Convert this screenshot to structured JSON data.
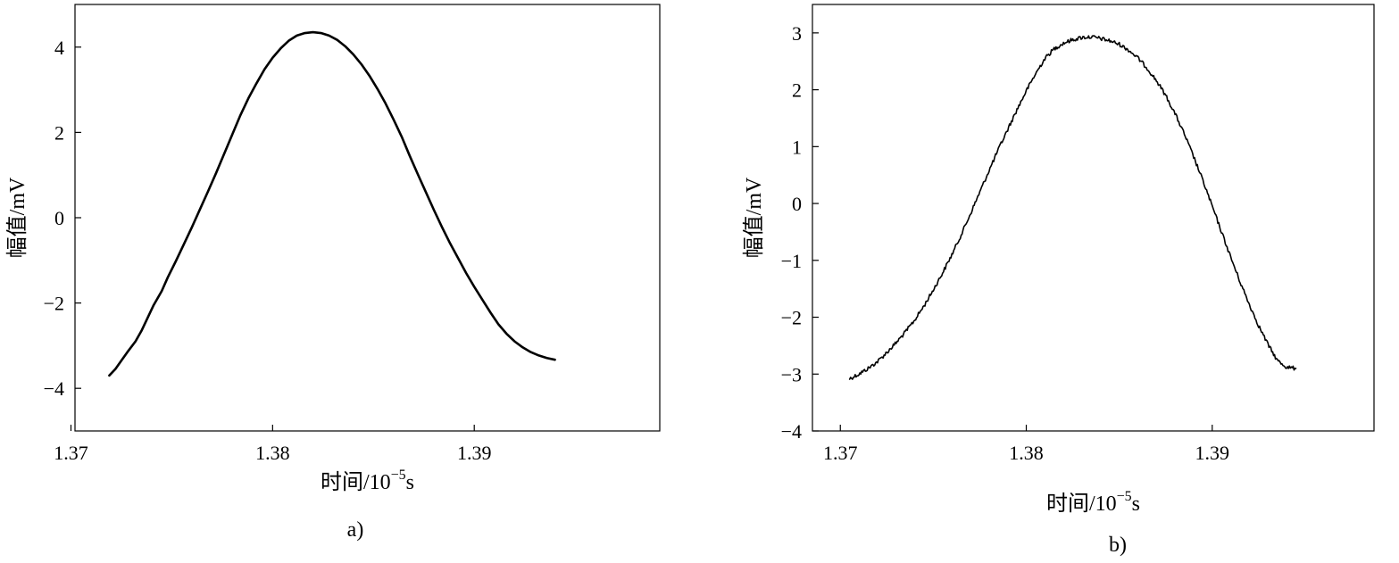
{
  "chart_data": [
    {
      "type": "line",
      "panel_label": "a)",
      "title": "",
      "xlabel": "时间/10",
      "xlabel_exponent": "−5",
      "xlabel_unit": "s",
      "ylabel": "幅值/mV",
      "xlim": [
        1.3702,
        1.3992
      ],
      "ylim": [
        -5,
        5
      ],
      "xticks": [
        1.37,
        1.38,
        1.39
      ],
      "xtick_labels": [
        "1.37",
        "1.38",
        "1.39"
      ],
      "yticks": [
        -4,
        -2,
        0,
        2,
        4
      ],
      "ytick_labels": [
        "−4",
        "−2",
        "0",
        "2",
        "4"
      ],
      "grid": false,
      "legend": "none",
      "series": [
        {
          "noise": false,
          "x": [
            1.3719,
            1.3722,
            1.3725,
            1.3728,
            1.3732,
            1.3735,
            1.3738,
            1.3741,
            1.3745,
            1.3748,
            1.3752,
            1.3756,
            1.376,
            1.3764,
            1.3768,
            1.3772,
            1.3776,
            1.378,
            1.3784,
            1.3788,
            1.3792,
            1.3796,
            1.38,
            1.3804,
            1.3808,
            1.3812,
            1.3816,
            1.382,
            1.3824,
            1.3828,
            1.3832,
            1.3836,
            1.384,
            1.3844,
            1.3848,
            1.3852,
            1.3856,
            1.386,
            1.3864,
            1.3868,
            1.3872,
            1.3876,
            1.388,
            1.3884,
            1.3888,
            1.3892,
            1.3896,
            1.39,
            1.3904,
            1.3908,
            1.3912,
            1.3916,
            1.392,
            1.3924,
            1.3928,
            1.3932,
            1.3936,
            1.394
          ],
          "y": [
            -3.7,
            -3.55,
            -3.35,
            -3.15,
            -2.9,
            -2.65,
            -2.35,
            -2.05,
            -1.72,
            -1.4,
            -1.02,
            -0.62,
            -0.22,
            0.2,
            0.62,
            1.05,
            1.5,
            1.95,
            2.4,
            2.8,
            3.15,
            3.48,
            3.75,
            3.97,
            4.15,
            4.27,
            4.33,
            4.35,
            4.33,
            4.27,
            4.17,
            4.02,
            3.83,
            3.6,
            3.33,
            3.02,
            2.68,
            2.3,
            1.9,
            1.45,
            1.02,
            0.6,
            0.18,
            -0.22,
            -0.6,
            -0.95,
            -1.3,
            -1.62,
            -1.92,
            -2.22,
            -2.5,
            -2.72,
            -2.9,
            -3.04,
            -3.15,
            -3.23,
            -3.29,
            -3.33
          ]
        }
      ]
    },
    {
      "type": "line",
      "panel_label": "b)",
      "title": "",
      "xlabel": "时间/10",
      "xlabel_exponent": "−5",
      "xlabel_unit": "s",
      "ylabel": "幅值/mV",
      "xlim": [
        1.3685,
        1.3987
      ],
      "ylim": [
        -4,
        3.5
      ],
      "xticks": [
        1.37,
        1.38,
        1.39
      ],
      "xtick_labels": [
        "1.37",
        "1.38",
        "1.39"
      ],
      "yticks": [
        -4,
        -3,
        -2,
        -1,
        0,
        1,
        2,
        3
      ],
      "ytick_labels": [
        "−4",
        "−3",
        "−2",
        "−1",
        "0",
        "1",
        "2",
        "3"
      ],
      "grid": false,
      "legend": "none",
      "series": [
        {
          "noise": true,
          "x": [
            1.3705,
            1.371,
            1.3715,
            1.372,
            1.3725,
            1.373,
            1.3735,
            1.374,
            1.3745,
            1.375,
            1.3755,
            1.376,
            1.3765,
            1.377,
            1.3775,
            1.378,
            1.3785,
            1.379,
            1.3795,
            1.38,
            1.3805,
            1.381,
            1.3815,
            1.382,
            1.3825,
            1.383,
            1.3835,
            1.384,
            1.3845,
            1.385,
            1.3855,
            1.386,
            1.3865,
            1.387,
            1.3875,
            1.388,
            1.3885,
            1.389,
            1.3895,
            1.39,
            1.3905,
            1.391,
            1.3915,
            1.392,
            1.3925,
            1.393,
            1.3935,
            1.394,
            1.3945
          ],
          "y": [
            -3.08,
            -3.0,
            -2.9,
            -2.78,
            -2.62,
            -2.45,
            -2.26,
            -2.05,
            -1.8,
            -1.52,
            -1.22,
            -0.9,
            -0.55,
            -0.18,
            0.2,
            0.58,
            0.95,
            1.3,
            1.65,
            1.98,
            2.28,
            2.55,
            2.72,
            2.82,
            2.88,
            2.92,
            2.93,
            2.9,
            2.86,
            2.8,
            2.7,
            2.56,
            2.38,
            2.16,
            1.9,
            1.58,
            1.22,
            0.82,
            0.4,
            -0.05,
            -0.5,
            -0.95,
            -1.38,
            -1.78,
            -2.15,
            -2.48,
            -2.76,
            -2.88,
            -2.9
          ]
        }
      ]
    }
  ]
}
